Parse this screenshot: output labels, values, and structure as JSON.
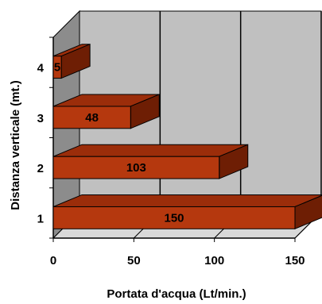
{
  "chart_data": {
    "type": "bar",
    "orientation": "horizontal",
    "style": "3d",
    "categories": [
      "1",
      "2",
      "3",
      "4"
    ],
    "values": [
      150,
      103,
      48,
      5
    ],
    "data_labels": [
      "150",
      "103",
      "48",
      "5"
    ],
    "xlabel": "Portata d'acqua (Lt/min.)",
    "ylabel": "Distanza verticale (mt.)",
    "xlim": [
      0,
      150
    ],
    "xticks": [
      "0",
      "50",
      "100",
      "150"
    ],
    "grid": "vertical",
    "legend": "none"
  },
  "colors": {
    "bar_front": "#B5380E",
    "bar_top": "#9B2D0A",
    "bar_side": "#6E1E04",
    "back_wall": "#C0C0C0",
    "side_wall": "#8C8C8C",
    "floor": "#D9D9D9"
  }
}
